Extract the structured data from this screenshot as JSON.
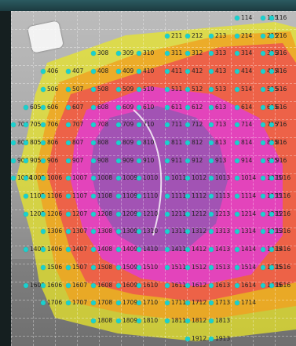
{
  "rows": [
    [
      "114",
      "115",
      "116"
    ],
    [
      "211",
      "212",
      "213",
      "214",
      "215",
      "216"
    ],
    [
      "308",
      "309",
      "310",
      "311",
      "312",
      "313",
      "314",
      "315",
      "316"
    ],
    [
      "406",
      "407",
      "408",
      "409",
      "410",
      "411",
      "412",
      "413",
      "414",
      "415",
      "416"
    ],
    [
      "506",
      "507",
      "508",
      "509",
      "510",
      "511",
      "512",
      "513",
      "514",
      "515",
      "516"
    ],
    [
      "605",
      "606",
      "607",
      "608",
      "609",
      "610",
      "611",
      "612",
      "613",
      "614",
      "615",
      "616"
    ],
    [
      "704",
      "705",
      "706",
      "707",
      "708",
      "709",
      "710",
      "711",
      "712",
      "713",
      "714",
      "715",
      "716"
    ],
    [
      "804",
      "805",
      "806",
      "807",
      "808",
      "809",
      "810",
      "811",
      "812",
      "813",
      "814",
      "815",
      "816"
    ],
    [
      "904",
      "905",
      "906",
      "907",
      "908",
      "909",
      "910",
      "911",
      "912",
      "913",
      "914",
      "915",
      "916"
    ],
    [
      "1004",
      "1005",
      "1006",
      "1007",
      "1008",
      "1009",
      "1010",
      "1011",
      "1012",
      "1013",
      "1014",
      "1015",
      "1016"
    ],
    [
      "1105",
      "1106",
      "1107",
      "1108",
      "1109",
      "1110",
      "1111",
      "1112",
      "1113",
      "1114",
      "1115",
      "1116"
    ],
    [
      "1205",
      "1206",
      "1207",
      "1208",
      "1209",
      "1210",
      "1211",
      "1212",
      "1213",
      "1214",
      "1215",
      "1216"
    ],
    [
      "1306",
      "1307",
      "1308",
      "1309",
      "1310",
      "1311",
      "1312",
      "1313",
      "1314",
      "1315",
      "1316"
    ],
    [
      "1405",
      "1406",
      "1407",
      "1408",
      "1409",
      "1410",
      "1411",
      "1412",
      "1413",
      "1414",
      "1415",
      "1416"
    ],
    [
      "1506",
      "1507",
      "1508",
      "1509",
      "1510",
      "1511",
      "1512",
      "1513",
      "1514",
      "1515",
      "1516"
    ],
    [
      "1605",
      "1606",
      "1607",
      "1608",
      "1609",
      "1610",
      "1611",
      "1612",
      "1613",
      "1614",
      "1615",
      "1616"
    ],
    [
      "1706",
      "1707",
      "1708",
      "1709",
      "1710",
      "1711",
      "1712",
      "1713",
      "1714"
    ],
    [
      "1808",
      "1809",
      "1810",
      "1811",
      "1812",
      "1813"
    ],
    [
      "1912",
      "1913"
    ]
  ],
  "colors": {
    "point_dot": "#1ad0d0",
    "zone_outer": "#e8e62a",
    "zone_orange": "#f0a020",
    "zone_red": "#ee5050",
    "zone_magenta": "#e040d0",
    "zone_purple": "#9a55b4"
  }
}
